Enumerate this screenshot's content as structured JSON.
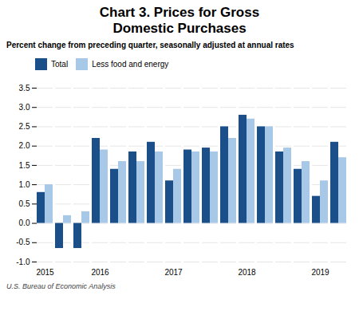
{
  "chart_data": {
    "type": "bar",
    "title": "Chart 3. Prices for Gross Domestic Purchases",
    "subtitle": "Percent change from preceding quarter, seasonally adjusted at annual rates",
    "caption": "U.S. Bureau of Economic Analysis",
    "categories": [
      "2015",
      null,
      null,
      "2016",
      null,
      null,
      null,
      "2017",
      null,
      null,
      null,
      "2018",
      null,
      null,
      null,
      "2019",
      null
    ],
    "series": [
      {
        "name": "Total",
        "color": "#1a4f8a",
        "values": [
          0.8,
          -0.65,
          -0.65,
          2.2,
          1.4,
          1.85,
          2.1,
          1.1,
          1.9,
          1.95,
          2.5,
          2.8,
          2.5,
          1.85,
          1.4,
          0.7,
          2.1
        ]
      },
      {
        "name": "Less food and energy",
        "color": "#a8c8e8",
        "values": [
          1.0,
          0.2,
          0.3,
          1.9,
          1.6,
          1.6,
          1.85,
          1.4,
          1.85,
          1.85,
          2.2,
          2.7,
          2.5,
          1.95,
          1.6,
          1.1,
          1.7
        ]
      }
    ],
    "ylim": [
      -1.0,
      3.5
    ],
    "yticks": [
      {
        "value": -1.0,
        "label": "-1.0"
      },
      -0.5,
      {
        "value": 0.0,
        "label": "0.0"
      },
      0.5,
      {
        "value": 1.0,
        "label": "1.0"
      },
      1.5,
      {
        "value": 2.0,
        "label": "2.0"
      },
      2.5,
      {
        "value": 3.0,
        "label": "3.0"
      },
      3.5
    ],
    "grid": true,
    "legend": "upper left"
  }
}
